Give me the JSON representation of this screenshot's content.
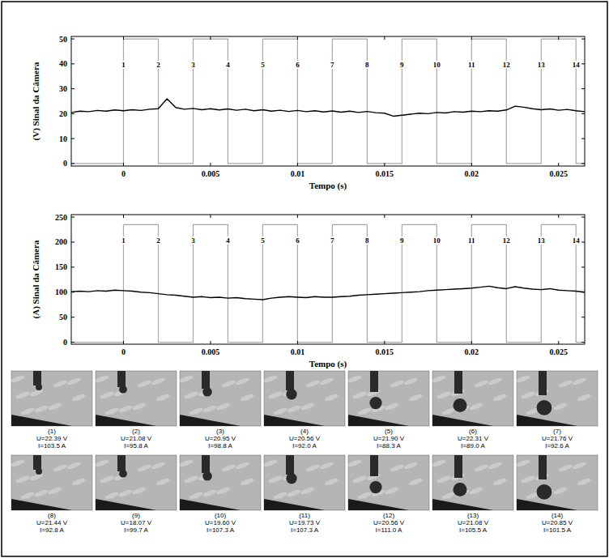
{
  "chart_data": [
    {
      "type": "line",
      "x_label": "Tempo (s)",
      "y_label": "(V) Sinal da Câmera",
      "xlim": [
        -0.003,
        0.0265
      ],
      "ylim": [
        -1,
        51
      ],
      "xticks": [
        0,
        0.005,
        0.01,
        0.015,
        0.02,
        0.025
      ],
      "yticks": [
        0,
        10,
        20,
        30,
        40,
        50
      ],
      "grid": false,
      "series": [
        {
          "color": "#a8a8a8",
          "x": [
            -0.003,
            0,
            0,
            0.002,
            0.002,
            0.004,
            0.004,
            0.006,
            0.006,
            0.008,
            0.008,
            0.01,
            0.01,
            0.012,
            0.012,
            0.014,
            0.014,
            0.016,
            0.016,
            0.018,
            0.018,
            0.02,
            0.02,
            0.022,
            0.022,
            0.024,
            0.024,
            0.026,
            0.026,
            0.0265
          ],
          "values": [
            0,
            0,
            50,
            50,
            0,
            0,
            50,
            50,
            0,
            0,
            50,
            50,
            0,
            0,
            50,
            50,
            0,
            0,
            50,
            50,
            0,
            0,
            50,
            50,
            0,
            0,
            50,
            50,
            0,
            0
          ]
        },
        {
          "color": "#000000",
          "x": [
            -0.003,
            -0.0025,
            -0.002,
            -0.0015,
            -0.001,
            -0.0005,
            0,
            0.0005,
            0.001,
            0.0015,
            0.002,
            0.0025,
            0.003,
            0.0035,
            0.004,
            0.0045,
            0.005,
            0.0055,
            0.006,
            0.0065,
            0.007,
            0.0075,
            0.008,
            0.0085,
            0.009,
            0.0095,
            0.01,
            0.0105,
            0.011,
            0.0115,
            0.012,
            0.0125,
            0.013,
            0.0135,
            0.014,
            0.0145,
            0.015,
            0.0155,
            0.016,
            0.0165,
            0.017,
            0.0175,
            0.018,
            0.0185,
            0.019,
            0.0195,
            0.02,
            0.0205,
            0.021,
            0.0215,
            0.022,
            0.0225,
            0.023,
            0.0235,
            0.024,
            0.0245,
            0.025,
            0.0255,
            0.026,
            0.0265
          ],
          "values": [
            20.5,
            21.0,
            20.8,
            21.3,
            21.0,
            21.5,
            21.2,
            21.6,
            21.3,
            21.8,
            22.0,
            26.0,
            22.5,
            21.8,
            22.1,
            21.6,
            22.0,
            21.5,
            21.9,
            21.4,
            21.8,
            21.2,
            21.6,
            21.0,
            21.4,
            20.9,
            21.3,
            20.8,
            21.2,
            20.7,
            21.1,
            20.6,
            21.0,
            20.5,
            20.9,
            20.4,
            20.2,
            19.0,
            19.4,
            19.8,
            20.2,
            20.0,
            20.5,
            20.3,
            20.8,
            20.6,
            21.0,
            20.8,
            21.2,
            21.0,
            21.5,
            23.0,
            22.6,
            22.0,
            21.6,
            21.9,
            21.4,
            21.7,
            21.2,
            20.8
          ]
        }
      ],
      "annotations": [
        {
          "text": "1",
          "x": 0,
          "y": 40
        },
        {
          "text": "2",
          "x": 0.002,
          "y": 40
        },
        {
          "text": "3",
          "x": 0.004,
          "y": 40
        },
        {
          "text": "4",
          "x": 0.006,
          "y": 40
        },
        {
          "text": "5",
          "x": 0.008,
          "y": 40
        },
        {
          "text": "6",
          "x": 0.01,
          "y": 40
        },
        {
          "text": "7",
          "x": 0.012,
          "y": 40
        },
        {
          "text": "8",
          "x": 0.014,
          "y": 40
        },
        {
          "text": "9",
          "x": 0.016,
          "y": 40
        },
        {
          "text": "10",
          "x": 0.018,
          "y": 40
        },
        {
          "text": "11",
          "x": 0.02,
          "y": 40
        },
        {
          "text": "12",
          "x": 0.022,
          "y": 40
        },
        {
          "text": "13",
          "x": 0.024,
          "y": 40
        },
        {
          "text": "14",
          "x": 0.026,
          "y": 40
        }
      ]
    },
    {
      "type": "line",
      "x_label": "Tempo (s)",
      "y_label": "(A) Sinal da Câmera",
      "xlim": [
        -0.003,
        0.0265
      ],
      "ylim": [
        -4,
        255
      ],
      "xticks": [
        0,
        0.005,
        0.01,
        0.015,
        0.02,
        0.025
      ],
      "yticks": [
        0,
        50,
        100,
        150,
        200,
        250
      ],
      "grid": false,
      "series": [
        {
          "color": "#a8a8a8",
          "x": [
            -0.003,
            0,
            0,
            0.002,
            0.002,
            0.004,
            0.004,
            0.006,
            0.006,
            0.008,
            0.008,
            0.01,
            0.01,
            0.012,
            0.012,
            0.014,
            0.014,
            0.016,
            0.016,
            0.018,
            0.018,
            0.02,
            0.02,
            0.022,
            0.022,
            0.024,
            0.024,
            0.026,
            0.026,
            0.0265
          ],
          "values": [
            0,
            0,
            235,
            235,
            0,
            0,
            235,
            235,
            0,
            0,
            235,
            235,
            0,
            0,
            235,
            235,
            0,
            0,
            235,
            235,
            0,
            0,
            235,
            235,
            0,
            0,
            235,
            235,
            0,
            0
          ]
        },
        {
          "color": "#000000",
          "x": [
            -0.003,
            -0.0025,
            -0.002,
            -0.0015,
            -0.001,
            -0.0005,
            0,
            0.0005,
            0.001,
            0.0015,
            0.002,
            0.0025,
            0.003,
            0.0035,
            0.004,
            0.0045,
            0.005,
            0.0055,
            0.006,
            0.0065,
            0.007,
            0.0075,
            0.008,
            0.0085,
            0.009,
            0.0095,
            0.01,
            0.0105,
            0.011,
            0.0115,
            0.012,
            0.0125,
            0.013,
            0.0135,
            0.014,
            0.0145,
            0.015,
            0.0155,
            0.016,
            0.0165,
            0.017,
            0.0175,
            0.018,
            0.0185,
            0.019,
            0.0195,
            0.02,
            0.0205,
            0.021,
            0.0215,
            0.022,
            0.0225,
            0.023,
            0.0235,
            0.024,
            0.0245,
            0.025,
            0.0255,
            0.026,
            0.0265
          ],
          "values": [
            101,
            102,
            101,
            103,
            102,
            104,
            103,
            102,
            100,
            99,
            97,
            95,
            94,
            92,
            90,
            91,
            89,
            90,
            88,
            89,
            87,
            86,
            85,
            88,
            90,
            91,
            90,
            89,
            91,
            90,
            90,
            91,
            92,
            94,
            95,
            96,
            97,
            98,
            99,
            100,
            101,
            103,
            104,
            105,
            106,
            107,
            108,
            110,
            112,
            109,
            107,
            111,
            108,
            106,
            105,
            107,
            104,
            103,
            102,
            100
          ]
        }
      ],
      "annotations": [
        {
          "text": "1",
          "x": 0,
          "y": 205
        },
        {
          "text": "2",
          "x": 0.002,
          "y": 205
        },
        {
          "text": "3",
          "x": 0.004,
          "y": 205
        },
        {
          "text": "4",
          "x": 0.006,
          "y": 205
        },
        {
          "text": "5",
          "x": 0.008,
          "y": 205
        },
        {
          "text": "6",
          "x": 0.01,
          "y": 205
        },
        {
          "text": "7",
          "x": 0.012,
          "y": 205
        },
        {
          "text": "8",
          "x": 0.014,
          "y": 205
        },
        {
          "text": "9",
          "x": 0.016,
          "y": 205
        },
        {
          "text": "10",
          "x": 0.018,
          "y": 205
        },
        {
          "text": "11",
          "x": 0.02,
          "y": 205
        },
        {
          "text": "12",
          "x": 0.022,
          "y": 205
        },
        {
          "text": "13",
          "x": 0.024,
          "y": 205
        },
        {
          "text": "14",
          "x": 0.026,
          "y": 205
        }
      ]
    }
  ],
  "frames": [
    {
      "label": "(1)",
      "voltage": "U=22.39 V",
      "current": "I=103.5 A"
    },
    {
      "label": "(2)",
      "voltage": "U=21.08 V",
      "current": "I=95.8 A"
    },
    {
      "label": "(3)",
      "voltage": "U=20.95 V",
      "current": "I=98.8 A"
    },
    {
      "label": "(4)",
      "voltage": "U=20.56 V",
      "current": "I=92.0 A"
    },
    {
      "label": "(5)",
      "voltage": "U=21.90 V",
      "current": "I=88.3 A"
    },
    {
      "label": "(6)",
      "voltage": "U=22.31 V",
      "current": "I=89.0 A"
    },
    {
      "label": "(7)",
      "voltage": "U=21.76 V",
      "current": "I=92.6 A"
    },
    {
      "label": "(8)",
      "voltage": "U=21.44 V",
      "current": "I=92.8 A"
    },
    {
      "label": "(9)",
      "voltage": "U=18.07 V",
      "current": "I=99.7 A"
    },
    {
      "label": "(10)",
      "voltage": "U=19.60 V",
      "current": "I=107.3 A"
    },
    {
      "label": "(11)",
      "voltage": "U=19.73 V",
      "current": "I=107.3 A"
    },
    {
      "label": "(12)",
      "voltage": "U=20.56 V",
      "current": "I=111.0 A"
    },
    {
      "label": "(13)",
      "voltage": "U=21.08 V",
      "current": "I=105.5 A"
    },
    {
      "label": "(14)",
      "voltage": "U=20.85 V",
      "current": "I=101.5 A"
    }
  ]
}
